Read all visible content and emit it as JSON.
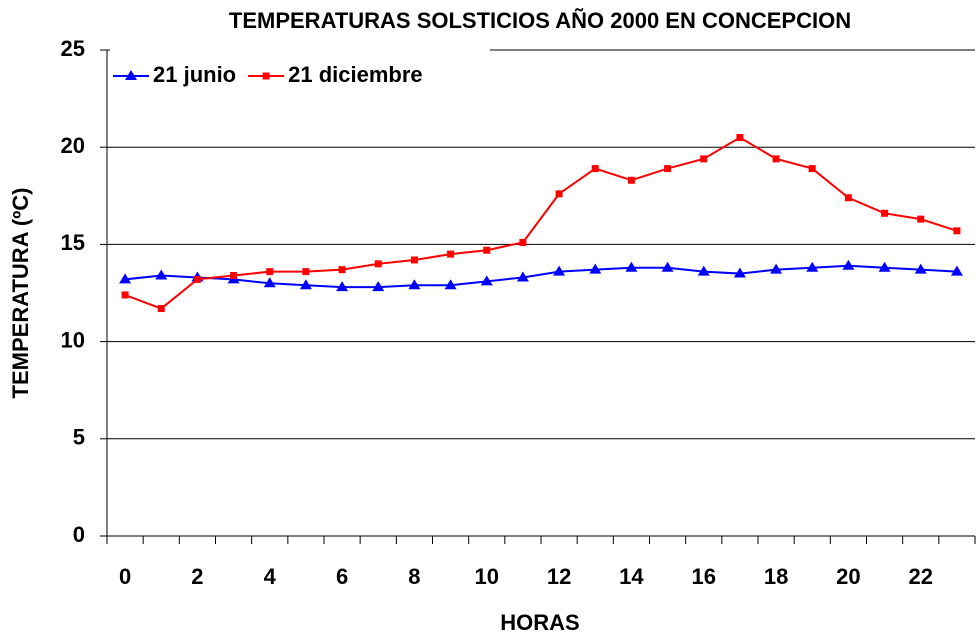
{
  "chart_data": {
    "type": "line",
    "title": "TEMPERATURAS SOLSTICIOS AÑO 2000 EN CONCEPCION",
    "x_label": "HORAS",
    "y_label": "TEMPERATURA (ºC)",
    "categories": [
      "0",
      null,
      "2",
      null,
      "4",
      null,
      "6",
      null,
      "8",
      null,
      "10",
      null,
      "12",
      null,
      "14",
      null,
      "16",
      null,
      "18",
      null,
      "20",
      null,
      "22",
      null
    ],
    "series": [
      {
        "name": "21 junio",
        "color": "#0000ff",
        "marker": "triangle",
        "values": [
          13.2,
          13.4,
          13.3,
          13.2,
          13.0,
          12.9,
          12.8,
          12.8,
          12.9,
          12.9,
          13.1,
          13.3,
          13.6,
          13.7,
          13.8,
          13.8,
          13.6,
          13.5,
          13.7,
          13.8,
          13.9,
          13.8,
          13.7,
          13.6
        ]
      },
      {
        "name": "21 diciembre",
        "color": "#ff0000",
        "marker": "square",
        "values": [
          12.4,
          11.7,
          13.2,
          13.4,
          13.6,
          13.6,
          13.7,
          14.0,
          14.2,
          14.5,
          14.7,
          15.1,
          17.6,
          18.9,
          18.3,
          18.9,
          19.4,
          20.5,
          19.4,
          18.9,
          17.4,
          16.6,
          16.3,
          15.7
        ]
      }
    ],
    "ylim": [
      0,
      25
    ],
    "yticks": [
      0,
      5,
      10,
      15,
      20,
      25
    ],
    "grid": true,
    "legend": "top-left"
  }
}
